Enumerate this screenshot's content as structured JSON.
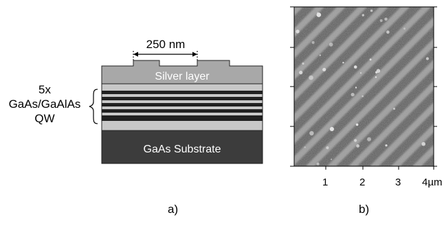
{
  "panel_a": {
    "period_label": "250 nm",
    "silver_label": "Silver layer",
    "qw_lines": [
      "5x",
      "GaAs/GaAlAs",
      "QW"
    ],
    "substrate_label": "GaAs Substrate",
    "caption": "a)",
    "colors": {
      "silver": "#a8a8a8",
      "substrate": "#3c3c3c",
      "spacer": "#c8c8c8",
      "barrier": "#202020"
    },
    "quantum_well_count": 5
  },
  "panel_b": {
    "x_ticks": [
      "1",
      "2",
      "3",
      "4µm"
    ],
    "caption": "b)",
    "stripe_count": 14
  }
}
